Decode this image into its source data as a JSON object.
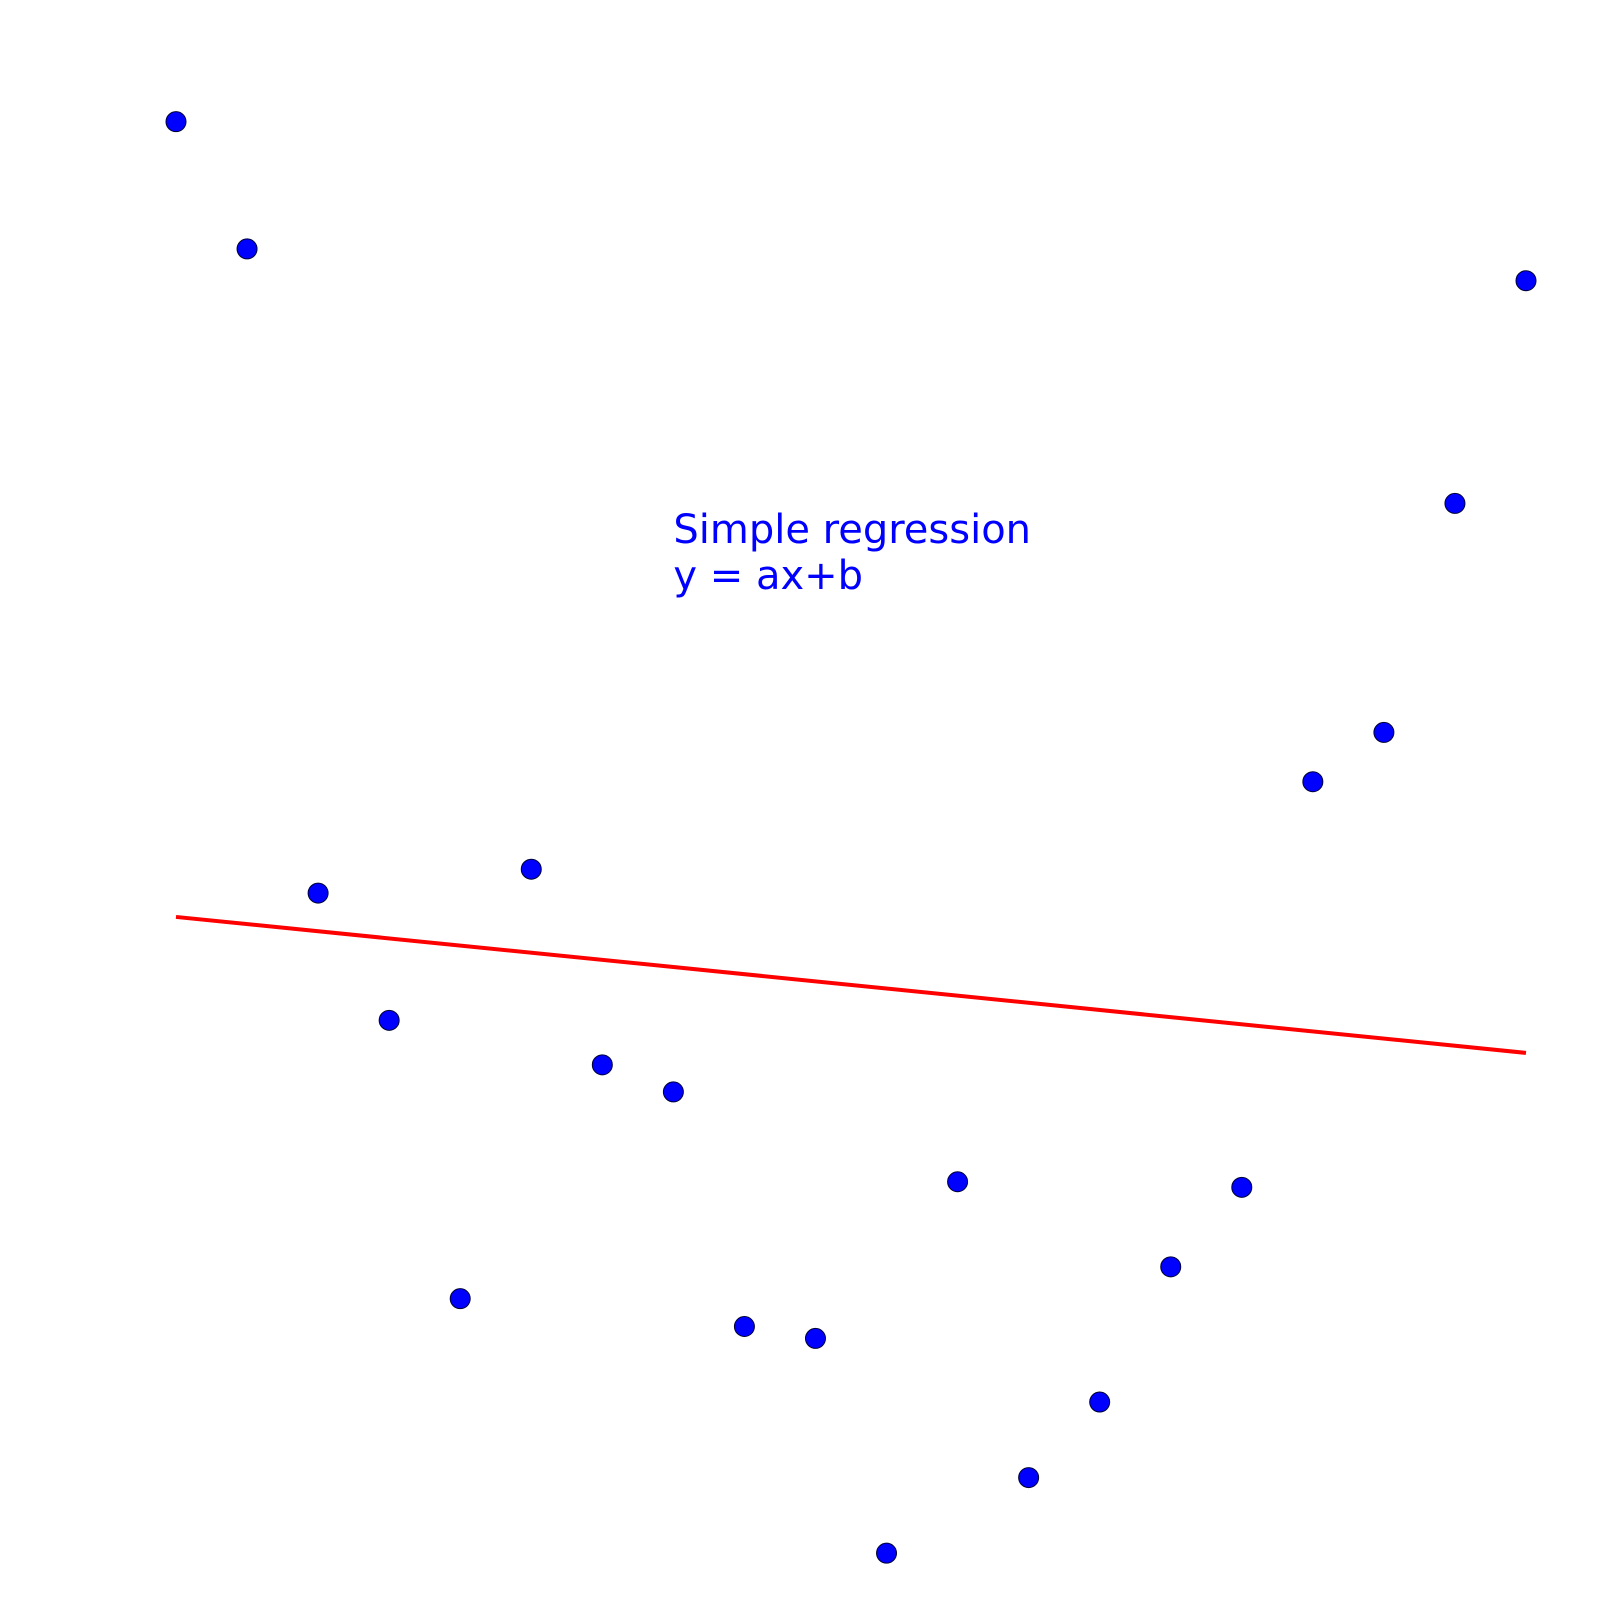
{
  "chart_data": {
    "type": "scatter",
    "title": "",
    "xlabel": "",
    "ylabel": "",
    "axes_visible": false,
    "grid": false,
    "xlim": [
      0,
      19
    ],
    "ylim": [
      -9.5,
      9.5
    ],
    "x": [
      0,
      1,
      2,
      3,
      4,
      5,
      6,
      7,
      8,
      9,
      10,
      11,
      12,
      13,
      14,
      15,
      16,
      17,
      18,
      19
    ],
    "y": [
      8.8,
      7.2,
      -0.9,
      -2.5,
      -6.0,
      -0.6,
      -3.06,
      -3.4,
      -6.35,
      -6.5,
      -9.2,
      -4.53,
      -8.25,
      -7.3,
      -5.6,
      -4.6,
      0.5,
      1.12,
      4.0,
      6.8
    ],
    "regression": {
      "slope": -0.09,
      "intercept": -1.2,
      "x_range": [
        0,
        19
      ]
    },
    "annotation": [
      "Simple regression",
      "y = ax+b"
    ],
    "annotation_anchor": {
      "x": 7,
      "y": 3.5
    },
    "colors": {
      "points": "#0000ff",
      "point_edge": "#000033",
      "regression_line": "#ff0000",
      "annotation": "#0000ff"
    }
  }
}
